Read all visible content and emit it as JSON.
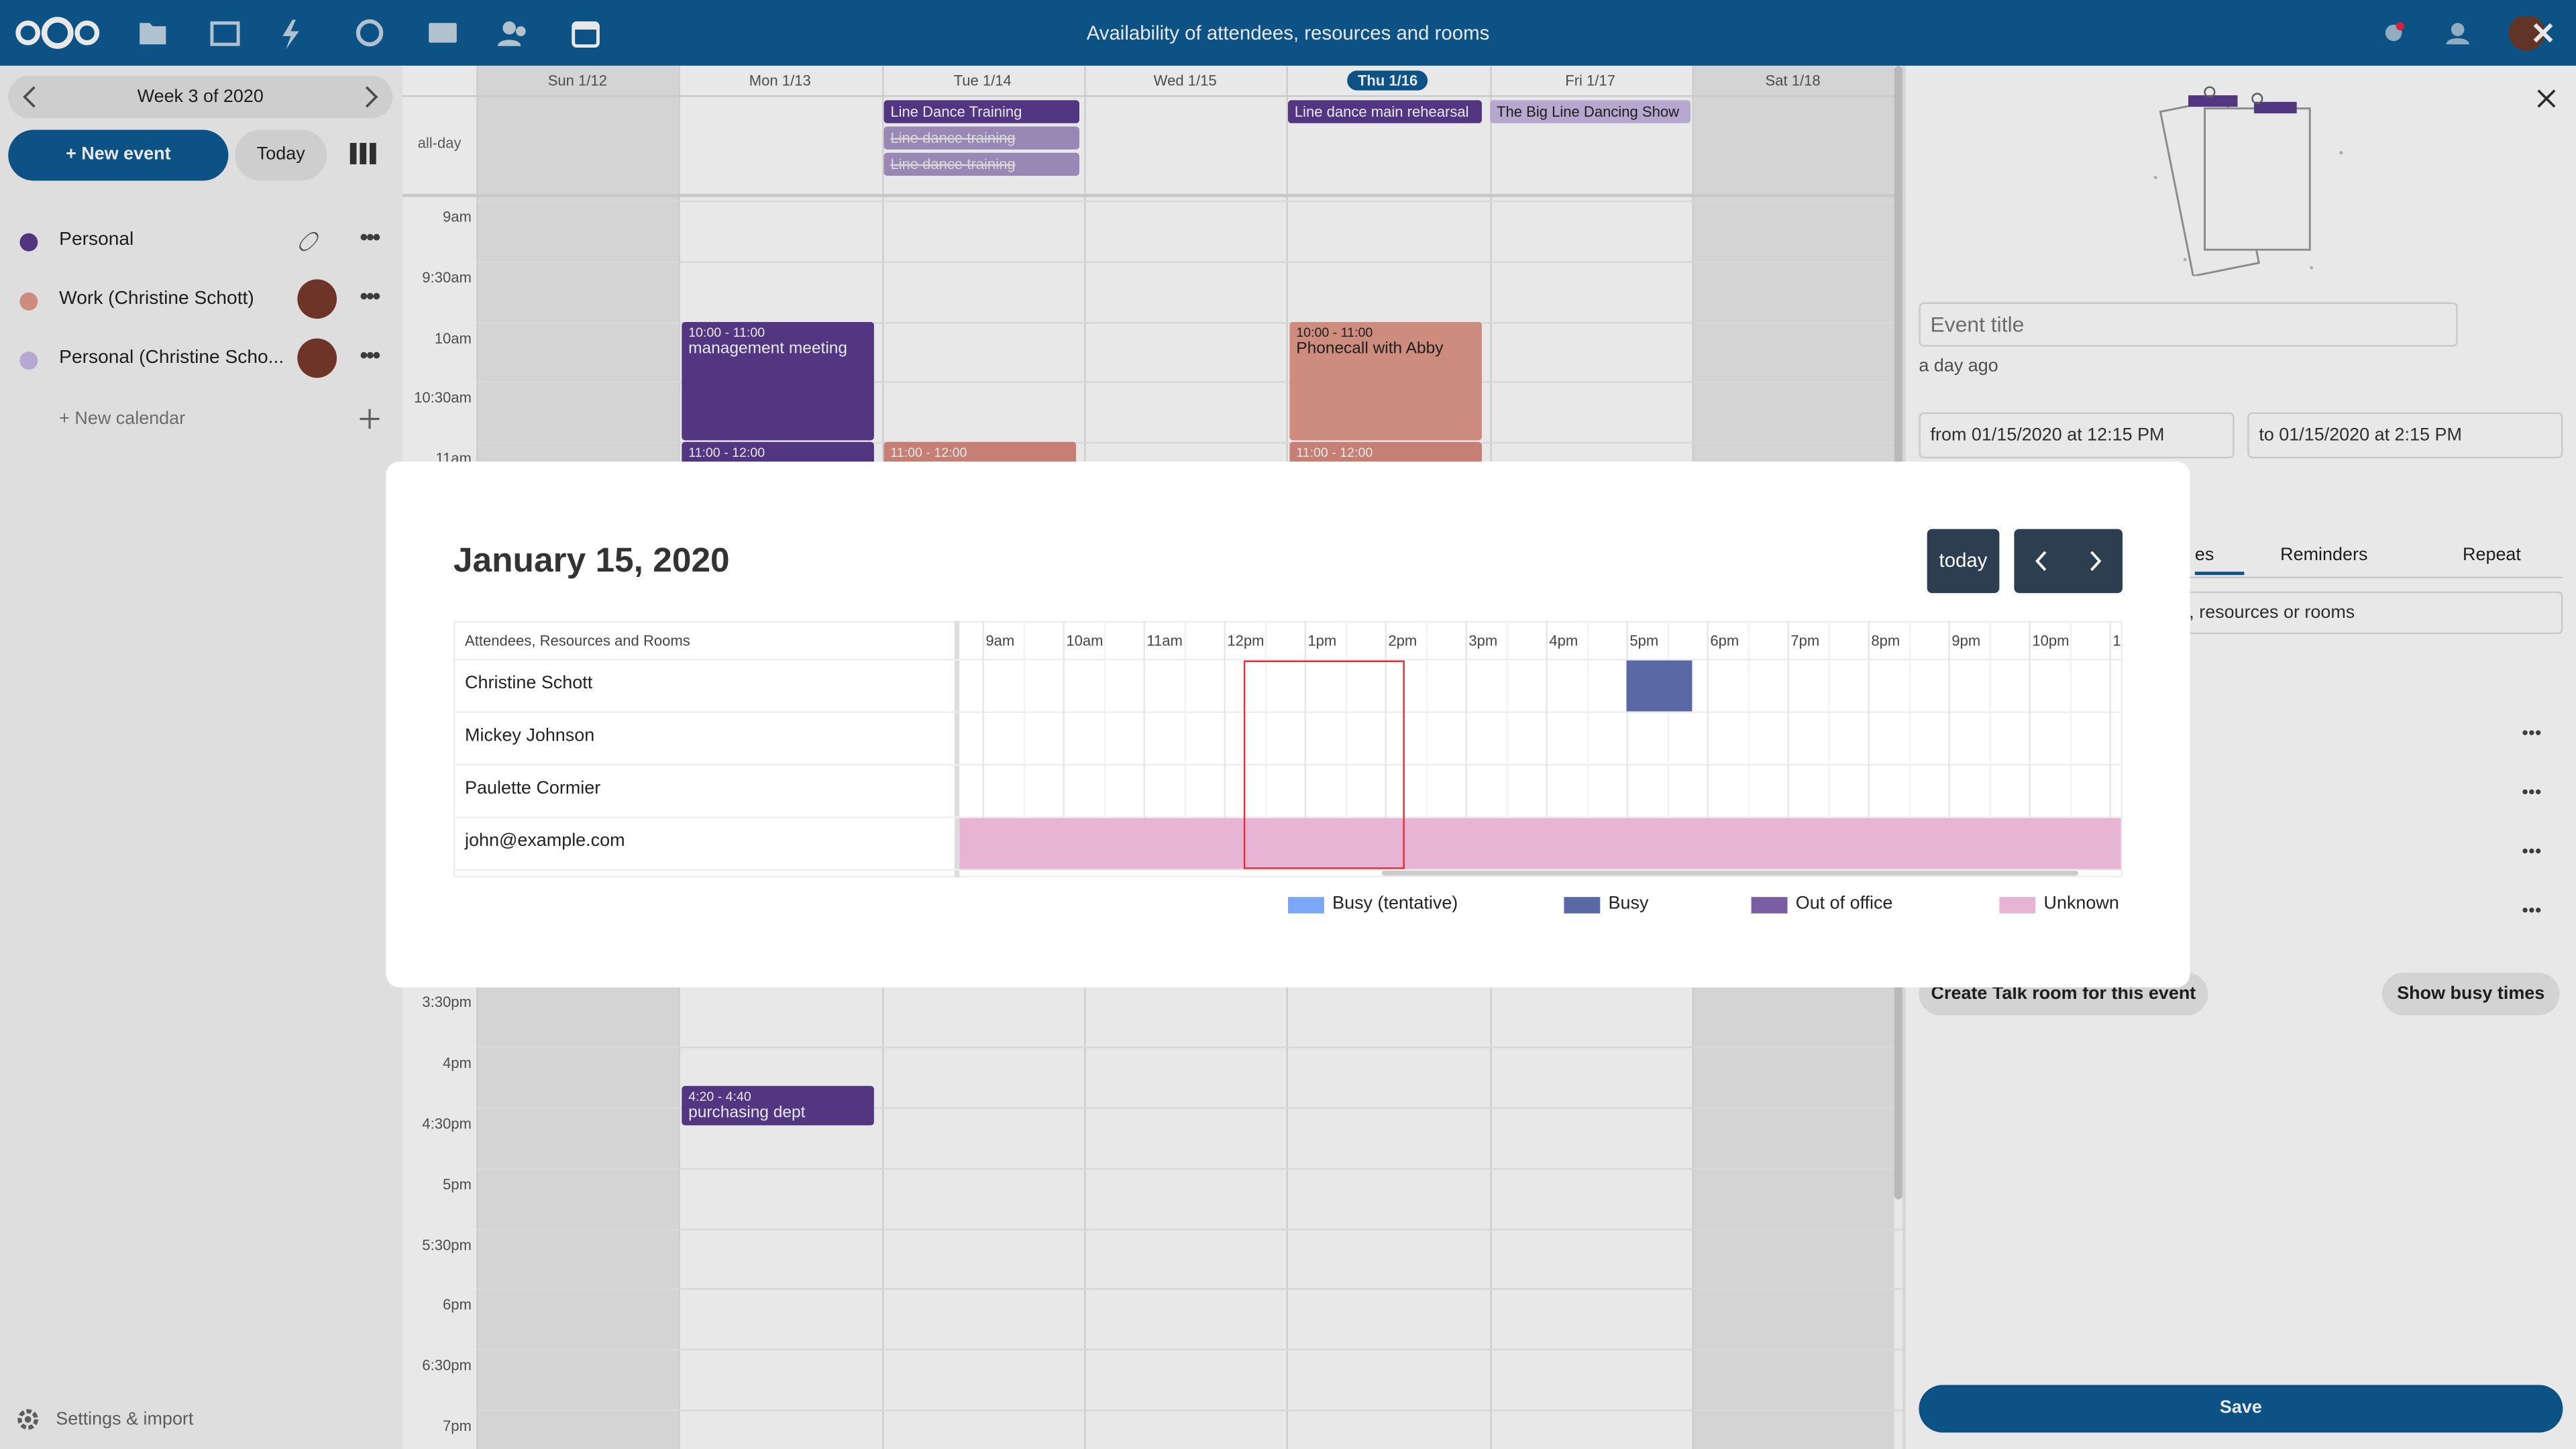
{
  "header": {
    "title": "Availability of attendees, resources and rooms"
  },
  "sidebar": {
    "week": "Week 3 of 2020",
    "new_event": "+ New event",
    "today": "Today",
    "calendars": [
      {
        "name": "Personal",
        "color": "#5b3b8c"
      },
      {
        "name": "Work (Christine Schott)",
        "color": "#e39a8c"
      },
      {
        "name": "Personal (Christine Scho...",
        "color": "#c8b9e6"
      }
    ],
    "new_calendar": "+ New calendar",
    "settings": "Settings & import"
  },
  "calendar": {
    "days": [
      "Sun 1/12",
      "Mon 1/13",
      "Tue 1/14",
      "Wed 1/15",
      "Thu 1/16",
      "Fri 1/17",
      "Sat 1/18"
    ],
    "all_day": "all-day",
    "times": [
      "9am",
      "9:30am",
      "10am",
      "10:30am",
      "11am",
      "3:30pm",
      "4pm",
      "4:30pm",
      "5pm",
      "5:30pm",
      "6pm",
      "6:30pm",
      "7pm"
    ],
    "all_day_events": [
      "Line Dance Training",
      "Line dance training",
      "Line dance training",
      "Line dance main rehearsal",
      "The Big Line Dancing Show"
    ],
    "events": [
      {
        "time": "10:00 - 11:00",
        "title": "management meeting"
      },
      {
        "time": "11:00 - 12:00"
      },
      {
        "time": "11:00 - 12:00"
      },
      {
        "time": "10:00 - 11:00",
        "title": "Phonecall with Abby"
      },
      {
        "time": "11:00 - 12:00"
      },
      {
        "time": "4:20 - 4:40",
        "title": "purchasing dept"
      }
    ]
  },
  "editor": {
    "title_placeholder": "Event title",
    "modified": "a day ago",
    "from": "from 01/15/2020 at 12:15 PM",
    "to": "to 01/15/2020 at 2:15 PM",
    "tabs": [
      "es",
      "Reminders",
      "Repeat"
    ],
    "search": "s, resources or rooms",
    "talk": "Create Talk room for this event",
    "busy": "Show busy times",
    "save": "Save"
  },
  "modal": {
    "date": "January 15, 2020",
    "today": "today",
    "column_header": "Attendees, Resources and Rooms",
    "hours": [
      "9am",
      "10am",
      "11am",
      "12pm",
      "1pm",
      "2pm",
      "3pm",
      "4pm",
      "5pm",
      "6pm",
      "7pm",
      "8pm",
      "9pm",
      "10pm",
      "1"
    ],
    "attendees": [
      "Christine Schott",
      "Mickey Johnson",
      "Paulette Cormier",
      "john@example.com"
    ],
    "legend": [
      {
        "label": "Busy (tentative)",
        "color": "#7ca7f6"
      },
      {
        "label": "Busy",
        "color": "#5b68a6"
      },
      {
        "label": "Out of office",
        "color": "#7b5da4"
      },
      {
        "label": "Unknown",
        "color": "#e7b5d3"
      }
    ]
  }
}
